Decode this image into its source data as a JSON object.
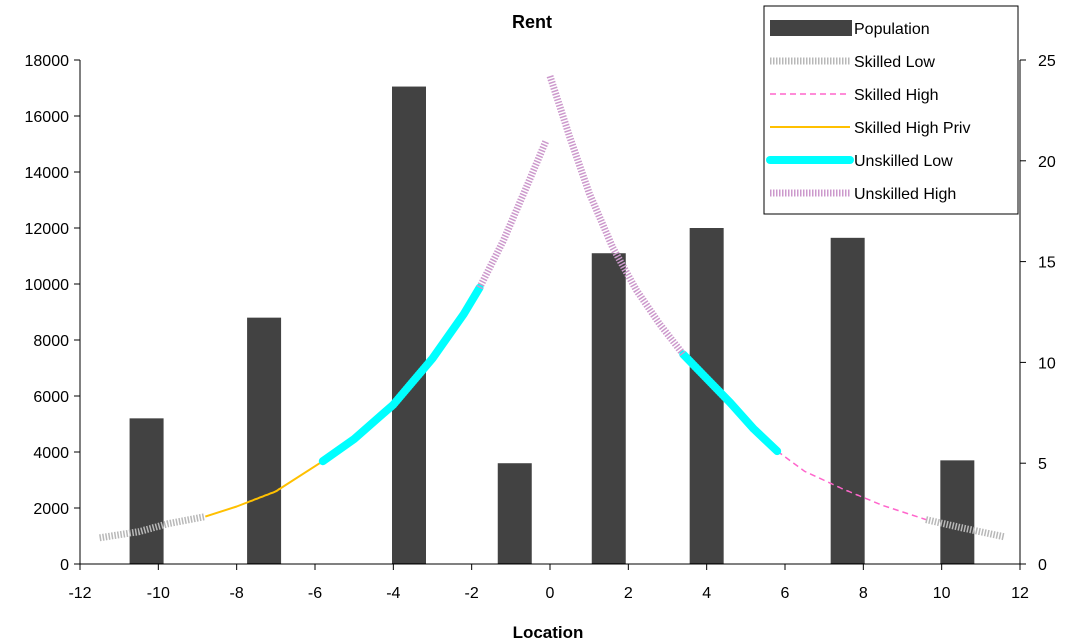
{
  "chart_data": {
    "type": "bar",
    "title": "Rent",
    "xlabel": "Location",
    "ylabel": "",
    "y2label": "",
    "xlim": [
      -12,
      12
    ],
    "x_ticks": [
      -12,
      -10,
      -8,
      -6,
      -4,
      -2,
      0,
      2,
      4,
      6,
      8,
      10,
      12
    ],
    "ylim": [
      0,
      18000
    ],
    "y_ticks": [
      0,
      2000,
      4000,
      6000,
      8000,
      10000,
      12000,
      14000,
      16000,
      18000
    ],
    "y2lim": [
      0,
      25
    ],
    "y2_ticks": [
      0,
      5,
      10,
      15,
      20,
      25
    ],
    "grid": false,
    "legend_position": "top-right",
    "bars": {
      "name": "Population",
      "axis": "left",
      "x": [
        -10.3,
        -7.3,
        -3.6,
        -0.9,
        1.5,
        4.0,
        7.6,
        10.4
      ],
      "values": [
        5200,
        8800,
        17050,
        3600,
        11100,
        12000,
        11650,
        3700
      ]
    },
    "series": [
      {
        "name": "Skilled Low",
        "axis": "right",
        "color": "#b8b8b8",
        "style": "dotted-band",
        "x": [
          -11.5,
          -10.5,
          -9.75,
          -8.8
        ],
        "y": [
          1.3,
          1.6,
          2.0,
          2.35
        ],
        "x2": [
          9.6,
          10.5,
          11.6
        ],
        "y2": [
          2.2,
          1.8,
          1.35
        ]
      },
      {
        "name": "Skilled High",
        "axis": "right",
        "color": "#ff66cc",
        "style": "dashed",
        "x": [
          5.8,
          6.5,
          7.5,
          8.5,
          9.6
        ],
        "y": [
          5.6,
          4.6,
          3.7,
          2.9,
          2.2
        ]
      },
      {
        "name": "Skilled High Priv",
        "axis": "right",
        "color": "#ffc000",
        "style": "solid",
        "x": [
          -8.8,
          -8.0,
          -7.0,
          -5.8
        ],
        "y": [
          2.35,
          2.85,
          3.6,
          5.1
        ]
      },
      {
        "name": "Unskilled Low",
        "axis": "right",
        "color": "#00ffff",
        "style": "thick",
        "x": [
          -5.8,
          -5.0,
          -4.0,
          -3.0,
          -2.2,
          -1.8
        ],
        "y": [
          5.1,
          6.2,
          7.9,
          10.2,
          12.4,
          13.7
        ],
        "x2": [
          3.4,
          4.0,
          4.6,
          5.2,
          5.8
        ],
        "y2": [
          10.4,
          9.2,
          8.0,
          6.7,
          5.6
        ]
      },
      {
        "name": "Unskilled High",
        "axis": "right",
        "color": "#cc99cc",
        "style": "dotted-band",
        "x": [
          -1.8,
          -1.2,
          -0.6,
          -0.1
        ],
        "y": [
          13.7,
          16.0,
          18.7,
          21.0
        ],
        "x2": [
          0.0,
          0.5,
          1.0,
          1.6,
          2.2,
          2.8,
          3.4
        ],
        "y2": [
          24.2,
          21.2,
          18.4,
          15.7,
          13.6,
          11.9,
          10.4
        ]
      }
    ]
  }
}
